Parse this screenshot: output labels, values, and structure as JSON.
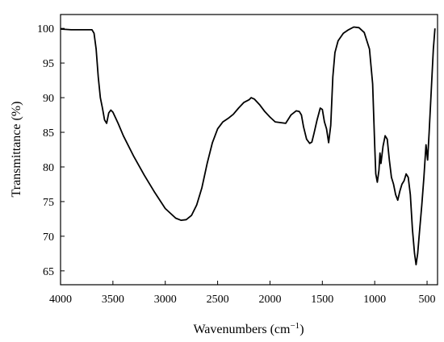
{
  "chart_data": {
    "type": "line",
    "title": "",
    "xlabel": "Wavenumbers (cm",
    "xlabel_sup": "−1",
    "xlabel_close": ")",
    "ylabel": "Transmittance (%)",
    "xlim": [
      4000,
      400
    ],
    "ylim": [
      63,
      102
    ],
    "x_reversed": true,
    "grid": false,
    "line_color": "#000000",
    "xticks": [
      4000,
      3500,
      3000,
      2500,
      2000,
      1500,
      1000,
      500
    ],
    "xtick_labels": [
      "4000",
      "3500",
      "3000",
      "2500",
      "2000",
      "1500",
      "1000",
      "500"
    ],
    "yticks": [
      65,
      70,
      75,
      80,
      85,
      90,
      95,
      100
    ],
    "ytick_labels": [
      "65",
      "70",
      "75",
      "80",
      "85",
      "90",
      "95",
      "100"
    ],
    "series": [
      {
        "points": [
          [
            4000,
            99.9
          ],
          [
            3900,
            99.8
          ],
          [
            3800,
            99.8
          ],
          [
            3700,
            99.8
          ],
          [
            3680,
            99.3
          ],
          [
            3660,
            97.0
          ],
          [
            3640,
            93.0
          ],
          [
            3620,
            90.0
          ],
          [
            3600,
            88.5
          ],
          [
            3580,
            86.8
          ],
          [
            3560,
            86.3
          ],
          [
            3540,
            87.8
          ],
          [
            3520,
            88.2
          ],
          [
            3500,
            87.9
          ],
          [
            3450,
            86.3
          ],
          [
            3400,
            84.5
          ],
          [
            3300,
            81.5
          ],
          [
            3200,
            78.8
          ],
          [
            3100,
            76.3
          ],
          [
            3000,
            74.0
          ],
          [
            2900,
            72.6
          ],
          [
            2850,
            72.3
          ],
          [
            2800,
            72.4
          ],
          [
            2750,
            73.0
          ],
          [
            2700,
            74.5
          ],
          [
            2650,
            77.0
          ],
          [
            2600,
            80.5
          ],
          [
            2550,
            83.5
          ],
          [
            2500,
            85.5
          ],
          [
            2450,
            86.5
          ],
          [
            2400,
            87.0
          ],
          [
            2350,
            87.6
          ],
          [
            2300,
            88.5
          ],
          [
            2250,
            89.3
          ],
          [
            2200,
            89.7
          ],
          [
            2180,
            90.0
          ],
          [
            2150,
            89.8
          ],
          [
            2100,
            89.0
          ],
          [
            2050,
            88.0
          ],
          [
            2000,
            87.2
          ],
          [
            1950,
            86.5
          ],
          [
            1900,
            86.4
          ],
          [
            1850,
            86.3
          ],
          [
            1800,
            87.5
          ],
          [
            1750,
            88.1
          ],
          [
            1720,
            88.0
          ],
          [
            1700,
            87.5
          ],
          [
            1680,
            85.8
          ],
          [
            1650,
            84.0
          ],
          [
            1620,
            83.4
          ],
          [
            1600,
            83.6
          ],
          [
            1580,
            84.8
          ],
          [
            1550,
            86.8
          ],
          [
            1520,
            88.5
          ],
          [
            1500,
            88.3
          ],
          [
            1480,
            86.5
          ],
          [
            1460,
            85.5
          ],
          [
            1440,
            83.5
          ],
          [
            1420,
            86.0
          ],
          [
            1400,
            93.0
          ],
          [
            1380,
            96.5
          ],
          [
            1350,
            98.2
          ],
          [
            1300,
            99.3
          ],
          [
            1250,
            99.8
          ],
          [
            1200,
            100.2
          ],
          [
            1150,
            100.1
          ],
          [
            1100,
            99.4
          ],
          [
            1050,
            97.0
          ],
          [
            1020,
            92.0
          ],
          [
            1000,
            83.0
          ],
          [
            990,
            79.0
          ],
          [
            975,
            77.8
          ],
          [
            960,
            79.5
          ],
          [
            950,
            82.0
          ],
          [
            940,
            80.5
          ],
          [
            920,
            83.0
          ],
          [
            900,
            84.5
          ],
          [
            880,
            84.0
          ],
          [
            860,
            81.0
          ],
          [
            840,
            78.5
          ],
          [
            820,
            77.5
          ],
          [
            800,
            76.0
          ],
          [
            780,
            75.2
          ],
          [
            760,
            76.5
          ],
          [
            740,
            77.5
          ],
          [
            720,
            78.0
          ],
          [
            700,
            79.0
          ],
          [
            680,
            78.5
          ],
          [
            660,
            76.0
          ],
          [
            640,
            71.0
          ],
          [
            620,
            67.5
          ],
          [
            605,
            65.9
          ],
          [
            590,
            67.5
          ],
          [
            570,
            71.0
          ],
          [
            550,
            74.5
          ],
          [
            530,
            78.5
          ],
          [
            510,
            83.2
          ],
          [
            495,
            81.0
          ],
          [
            480,
            85.0
          ],
          [
            460,
            91.0
          ],
          [
            440,
            97.0
          ],
          [
            425,
            100.0
          ]
        ]
      }
    ]
  }
}
